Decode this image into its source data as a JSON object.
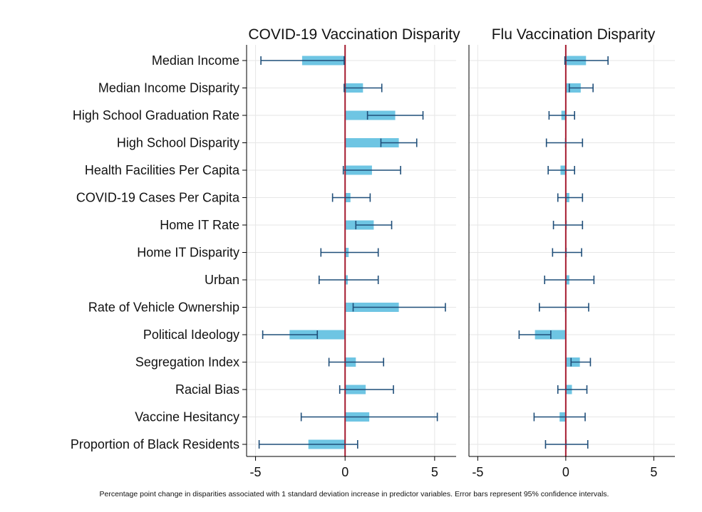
{
  "chart_data": {
    "type": "bar",
    "orientation": "horizontal",
    "categories": [
      "Median Income",
      "Median Income Disparity",
      "High School Graduation Rate",
      "High School Disparity",
      "Health Facilities Per Capita",
      "COVID-19 Cases Per Capita",
      "Home IT Rate",
      "Home IT Disparity",
      "Urban",
      "Rate of Vehicle Ownership",
      "Political Ideology",
      "Segregation Index",
      "Racial Bias",
      "Vaccine Hesitancy",
      "Proportion of Black Residents"
    ],
    "panels": [
      {
        "title": "COVID-19 Vaccination Disparity",
        "xlim": [
          -5.5,
          6.2
        ],
        "xticks": [
          -5,
          0,
          5
        ],
        "grid": true,
        "reference_line": 0,
        "values": [
          -2.4,
          1.0,
          2.8,
          3.0,
          1.5,
          0.3,
          1.6,
          0.2,
          0.15,
          3.0,
          -3.1,
          0.6,
          1.15,
          1.35,
          -2.05
        ],
        "ci_lower": [
          -4.7,
          -0.05,
          1.25,
          2.0,
          -0.1,
          -0.7,
          0.6,
          -1.35,
          -1.45,
          0.45,
          -4.6,
          -0.9,
          -0.3,
          -2.45,
          -4.8
        ],
        "ci_upper": [
          -0.05,
          2.05,
          4.35,
          4.0,
          3.1,
          1.4,
          2.6,
          1.85,
          1.85,
          5.6,
          -1.55,
          2.15,
          2.7,
          5.15,
          0.7
        ]
      },
      {
        "title": "Flu Vaccination Disparity",
        "xlim": [
          -5.5,
          6.2
        ],
        "xticks": [
          -5,
          0,
          5
        ],
        "grid": true,
        "reference_line": 0,
        "values": [
          1.15,
          0.85,
          -0.25,
          -0.05,
          -0.3,
          0.2,
          0.05,
          0.02,
          0.2,
          -0.05,
          -1.75,
          0.8,
          0.35,
          -0.35,
          0.0
        ],
        "ci_lower": [
          -0.05,
          0.2,
          -0.95,
          -1.1,
          -1.0,
          -0.45,
          -0.7,
          -0.75,
          -1.2,
          -1.5,
          -2.65,
          0.3,
          -0.45,
          -1.8,
          -1.15
        ],
        "ci_upper": [
          2.4,
          1.55,
          0.5,
          0.95,
          0.5,
          0.95,
          0.95,
          0.9,
          1.6,
          1.3,
          -0.85,
          1.4,
          1.2,
          1.1,
          1.25
        ]
      }
    ],
    "footnote": "Percentage point change in disparities associated with 1 standard deviation increase in predictor variables. Error bars represent 95% confidence intervals.",
    "colors": {
      "bar": "#6ec5e3",
      "errorbar": "#1f4e79",
      "reference_line": "#a51c30",
      "grid": "#e6e6e6",
      "axis": "#000000"
    }
  }
}
